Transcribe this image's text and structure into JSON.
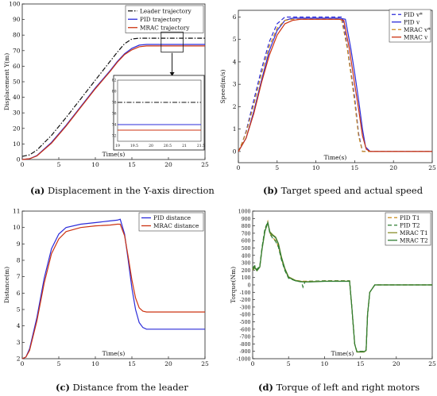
{
  "captions": [
    {
      "tag": "(a)",
      "text": "Displacement in the Y-axis direction"
    },
    {
      "tag": "(b)",
      "text": "Target speed and actual speed"
    },
    {
      "tag": "(c)",
      "text": "Distance from the leader"
    },
    {
      "tag": "(d)",
      "text": "Torque of left and right motors"
    }
  ],
  "colors": {
    "black": "#111111",
    "blue": "#2b2bd9",
    "red": "#cc3311",
    "orange": "#c98a1a",
    "green": "#2e7d32",
    "olive": "#8a8f2a"
  },
  "chart_data": [
    {
      "type": "line",
      "xlabel": "Time(s)",
      "ylabel": "Displacement Y(m)",
      "xlim": [
        0,
        25
      ],
      "ylim": [
        0,
        100
      ],
      "xticks": [
        0,
        5,
        10,
        15,
        20,
        25
      ],
      "yticks": [
        0,
        10,
        20,
        30,
        40,
        50,
        60,
        70,
        80,
        90,
        100
      ],
      "legend": "top-right",
      "grid": false,
      "series": [
        {
          "name": "Leader trajectory",
          "color": "#111111",
          "dash": "dashdot",
          "x": [
            0,
            1,
            2,
            4,
            6,
            8,
            10,
            12,
            13,
            14,
            15,
            16,
            18,
            20,
            25
          ],
          "y": [
            2,
            3,
            6,
            15.5,
            27,
            39,
            51,
            63,
            69,
            74.5,
            77.5,
            78,
            78,
            78,
            78
          ]
        },
        {
          "name": "PID trajectory",
          "color": "#2b2bd9",
          "dash": "solid",
          "x": [
            0,
            1,
            2,
            4,
            6,
            8,
            10,
            12,
            13,
            14,
            15,
            16,
            17,
            18,
            20,
            25
          ],
          "y": [
            0,
            0.5,
            2.5,
            11,
            22,
            34,
            46,
            57,
            63,
            68,
            71.5,
            73.5,
            74,
            74,
            74,
            74
          ]
        },
        {
          "name": "MRAC trajectory",
          "color": "#cc3311",
          "dash": "solid",
          "x": [
            0,
            1,
            2,
            4,
            6,
            8,
            10,
            12,
            13,
            14,
            15,
            16,
            17,
            18,
            20,
            25
          ],
          "y": [
            0,
            0.5,
            2.3,
            10.5,
            21.5,
            33.5,
            45.5,
            56.5,
            62.5,
            67.5,
            70.5,
            72.5,
            73,
            73,
            73,
            73
          ]
        }
      ],
      "inset": {
        "xlim": [
          19,
          21.5
        ],
        "ylim": [
          71,
          82
        ],
        "xticks": [
          19,
          19.5,
          20,
          20.5,
          21,
          21.5
        ],
        "yticks": [
          72,
          74,
          76,
          78,
          80,
          82
        ],
        "levels": [
          {
            "series": "Leader trajectory",
            "y": 78
          },
          {
            "series": "PID trajectory",
            "y": 74
          },
          {
            "series": "MRAC trajectory",
            "y": 73
          }
        ]
      }
    },
    {
      "type": "line",
      "xlabel": "Time(s)",
      "ylabel": "Speed(m/s)",
      "xlim": [
        0,
        25
      ],
      "ylim": [
        -0.5,
        6.3
      ],
      "xticks": [
        0,
        5,
        10,
        15,
        20,
        25
      ],
      "yticks": [
        0,
        1,
        2,
        3,
        4,
        5,
        6
      ],
      "legend": "top-right",
      "grid": false,
      "series": [
        {
          "name": "PID v*",
          "color": "#2b2bd9",
          "dash": "dash",
          "x": [
            0,
            0.5,
            1,
            2,
            3,
            4,
            5,
            6,
            7,
            8,
            10,
            12,
            13,
            13.4,
            14,
            14.5,
            15,
            15.5,
            16,
            17,
            20,
            25
          ],
          "y": [
            0,
            0.4,
            0.9,
            2.3,
            3.7,
            4.9,
            5.7,
            6,
            6,
            6,
            6,
            6,
            6,
            6,
            4.8,
            3.6,
            2.4,
            0.8,
            0,
            0,
            0,
            0
          ]
        },
        {
          "name": "PID v",
          "color": "#2b2bd9",
          "dash": "solid",
          "x": [
            0,
            0.5,
            1,
            2,
            3,
            4,
            5,
            6,
            7,
            8,
            10,
            12,
            13,
            13.8,
            14.5,
            15,
            15.5,
            16,
            16.4,
            17,
            20,
            25
          ],
          "y": [
            0,
            0.3,
            0.6,
            1.8,
            3.2,
            4.5,
            5.4,
            5.85,
            5.95,
            5.95,
            5.95,
            5.95,
            5.95,
            5.9,
            4.6,
            3.5,
            2.3,
            1.0,
            0.2,
            0,
            0,
            0
          ]
        },
        {
          "name": "MRAC v*",
          "color": "#c98a1a",
          "dash": "dash",
          "x": [
            0,
            0.5,
            1,
            2,
            3,
            4,
            5,
            6,
            7,
            8,
            10,
            12,
            13,
            13.3,
            14,
            14.5,
            15,
            15.5,
            16,
            17,
            20,
            25
          ],
          "y": [
            0,
            0.4,
            0.85,
            2.1,
            3.5,
            4.7,
            5.5,
            5.85,
            5.9,
            5.9,
            5.9,
            5.9,
            5.9,
            5.9,
            4.7,
            3.5,
            2.2,
            0.7,
            0,
            0,
            0,
            0
          ]
        },
        {
          "name": "MRAC v",
          "color": "#cc3311",
          "dash": "solid",
          "x": [
            0,
            0.5,
            1,
            2,
            3,
            4,
            5,
            6,
            7,
            8,
            10,
            12,
            13,
            13.6,
            14.3,
            15,
            15.5,
            16,
            16.5,
            17,
            20,
            25
          ],
          "y": [
            0,
            0.3,
            0.6,
            1.7,
            3.1,
            4.3,
            5.2,
            5.7,
            5.85,
            5.9,
            5.9,
            5.9,
            5.9,
            5.85,
            4.6,
            3.0,
            1.9,
            0.7,
            0.1,
            0,
            0,
            0
          ]
        }
      ]
    },
    {
      "type": "line",
      "xlabel": "Time(s)",
      "ylabel": "Distance(m)",
      "xlim": [
        0,
        25
      ],
      "ylim": [
        2,
        11
      ],
      "xticks": [
        0,
        5,
        10,
        15,
        20,
        25
      ],
      "yticks": [
        2,
        3,
        4,
        5,
        6,
        7,
        8,
        9,
        10,
        11
      ],
      "legend": "top-right",
      "grid": false,
      "series": [
        {
          "name": "PID distance",
          "color": "#2b2bd9",
          "dash": "solid",
          "x": [
            0,
            0.5,
            1,
            2,
            3,
            4,
            5,
            6,
            8,
            10,
            12,
            13,
            13.4,
            14,
            14.5,
            15,
            15.5,
            16,
            16.5,
            17,
            18,
            20,
            25
          ],
          "y": [
            2,
            2.1,
            2.6,
            4.5,
            6.9,
            8.7,
            9.6,
            10,
            10.2,
            10.3,
            10.4,
            10.45,
            10.5,
            9.6,
            8.0,
            6.3,
            5.0,
            4.2,
            3.9,
            3.8,
            3.8,
            3.8,
            3.8
          ]
        },
        {
          "name": "MRAC distance",
          "color": "#cc3311",
          "dash": "solid",
          "x": [
            0,
            0.5,
            1,
            2,
            3,
            4,
            5,
            6,
            8,
            10,
            12,
            13,
            13.4,
            14,
            14.5,
            15,
            15.5,
            16,
            16.5,
            17,
            18,
            20,
            25
          ],
          "y": [
            2,
            2.1,
            2.5,
            4.3,
            6.6,
            8.4,
            9.3,
            9.75,
            10,
            10.1,
            10.15,
            10.2,
            10.2,
            9.5,
            8.2,
            6.8,
            5.7,
            5.1,
            4.9,
            4.85,
            4.85,
            4.85,
            4.85
          ]
        }
      ]
    },
    {
      "type": "line",
      "xlabel": "Time(s)",
      "ylabel": "Torque(Nm)",
      "xlim": [
        0,
        25
      ],
      "ylim": [
        -1000,
        1000
      ],
      "xticks": [
        0,
        5,
        10,
        15,
        20,
        25
      ],
      "yticks": [
        -1000,
        -900,
        -800,
        -700,
        -600,
        -500,
        -400,
        -300,
        -200,
        -100,
        0,
        100,
        200,
        300,
        400,
        500,
        600,
        700,
        800,
        900,
        1000
      ],
      "legend": "top-right",
      "grid": false,
      "series": [
        {
          "name": "PID T1",
          "color": "#c98a1a",
          "dash": "dash",
          "x": [
            0,
            0.3,
            0.6,
            1,
            1.3,
            1.7,
            2.1,
            2.4,
            2.8,
            3.2,
            3.6,
            4,
            4.5,
            5,
            6,
            7,
            8,
            10,
            12,
            13.5,
            13.8,
            14.2,
            14.5,
            15,
            15.5,
            15.8,
            16,
            16.3,
            17,
            20,
            25
          ],
          "y": [
            220,
            250,
            200,
            250,
            500,
            750,
            860,
            700,
            640,
            600,
            520,
            350,
            200,
            100,
            60,
            50,
            50,
            55,
            55,
            55,
            -300,
            -800,
            -900,
            -900,
            -900,
            -880,
            -400,
            -100,
            0,
            0,
            0
          ]
        },
        {
          "name": "PID T2",
          "color": "#2e7d32",
          "dash": "dash",
          "x": [
            0,
            0.3,
            0.6,
            1,
            1.3,
            1.7,
            2.1,
            2.4,
            2.8,
            3.2,
            3.6,
            4,
            4.5,
            5,
            6,
            6.8,
            7,
            7.3,
            8,
            10,
            12,
            13.5,
            13.8,
            14.2,
            14.5,
            15,
            15.5,
            15.8,
            16,
            16.3,
            17,
            20,
            25
          ],
          "y": [
            230,
            260,
            210,
            260,
            510,
            760,
            850,
            690,
            630,
            590,
            510,
            340,
            190,
            90,
            55,
            40,
            -30,
            45,
            50,
            55,
            55,
            55,
            -300,
            -800,
            -900,
            -900,
            -900,
            -880,
            -400,
            -100,
            0,
            0,
            0
          ]
        },
        {
          "name": "MRAC T1",
          "color": "#8a8f2a",
          "dash": "solid",
          "x": [
            0,
            0.3,
            0.6,
            1,
            1.3,
            1.7,
            2.1,
            2.4,
            2.8,
            3.2,
            3.6,
            4,
            4.5,
            5,
            6,
            7,
            8,
            10,
            12,
            13.5,
            13.8,
            14.2,
            14.5,
            15,
            15.5,
            15.8,
            16,
            16.3,
            17,
            20,
            25
          ],
          "y": [
            200,
            230,
            190,
            240,
            480,
            720,
            840,
            720,
            680,
            650,
            560,
            380,
            220,
            110,
            60,
            45,
            45,
            50,
            50,
            50,
            -300,
            -800,
            -910,
            -910,
            -910,
            -890,
            -400,
            -100,
            0,
            0,
            0
          ]
        },
        {
          "name": "MRAC T2",
          "color": "#2e7d32",
          "dash": "solid",
          "x": [
            0,
            0.3,
            0.6,
            1,
            1.3,
            1.7,
            2.1,
            2.4,
            2.8,
            3.2,
            3.6,
            4,
            4.5,
            5,
            6,
            7,
            8,
            10,
            12,
            13.5,
            13.8,
            14.2,
            14.5,
            15,
            15.5,
            15.8,
            16,
            16.3,
            17,
            20,
            25
          ],
          "y": [
            210,
            240,
            195,
            245,
            490,
            730,
            845,
            710,
            670,
            640,
            550,
            370,
            210,
            100,
            55,
            40,
            40,
            48,
            48,
            48,
            -300,
            -800,
            -905,
            -905,
            -905,
            -885,
            -400,
            -100,
            0,
            0,
            0
          ]
        }
      ]
    }
  ]
}
